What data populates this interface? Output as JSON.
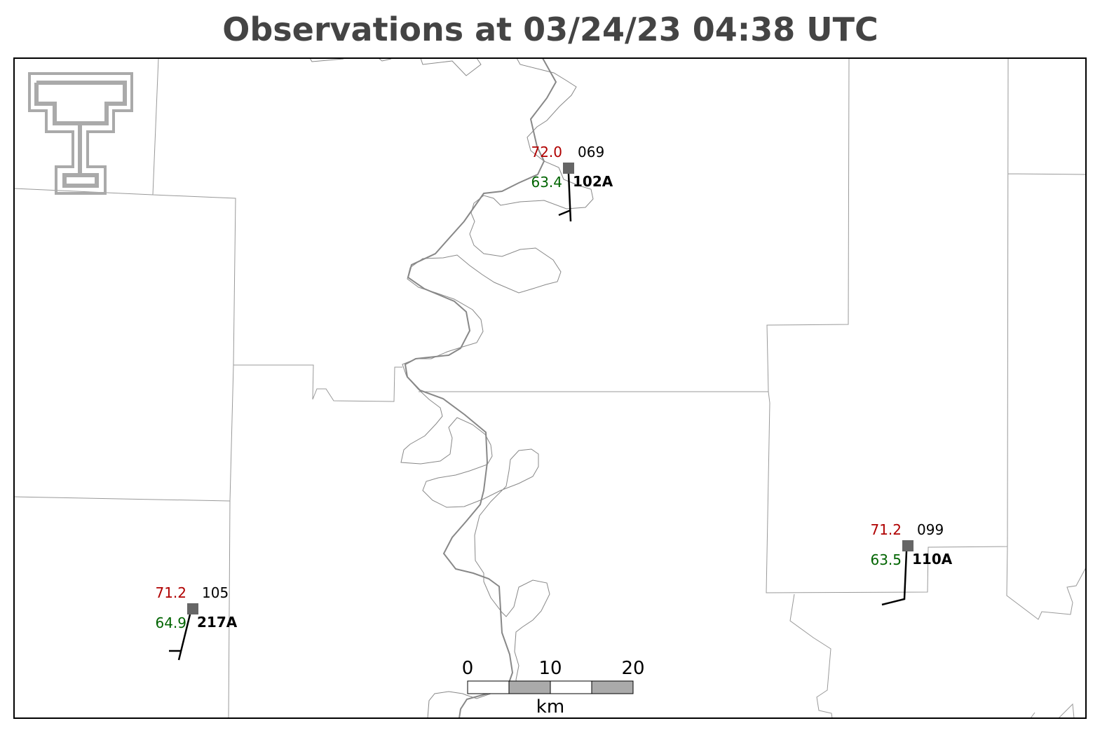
{
  "header": {
    "title": "Observations at 03/24/23 04:38 UTC"
  },
  "stations": [
    {
      "temperature": "72.0",
      "dewpoint": "63.4",
      "pressure": "069",
      "id": "102A"
    },
    {
      "temperature": "71.2",
      "dewpoint": "63.5",
      "pressure": "099",
      "id": "110A"
    },
    {
      "temperature": "71.2",
      "dewpoint": "64.9",
      "pressure": "105",
      "id": "217A"
    }
  ],
  "scale_bar": {
    "ticks": [
      "0",
      "10",
      "20"
    ],
    "unit": "km"
  }
}
